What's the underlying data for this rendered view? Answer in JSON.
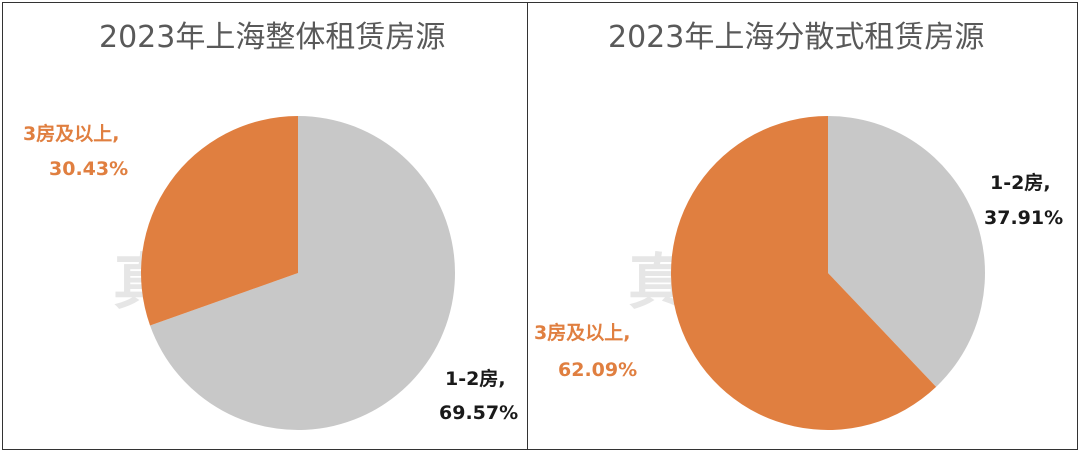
{
  "watermark": "真叫卢俊",
  "colors": {
    "slice_large_orange": "#e07f40",
    "slice_gray": "#c8c8c8",
    "orange_label": "#e07f40",
    "dark_label": "#1a1a1a",
    "title": "#595959"
  },
  "chart_data": [
    {
      "type": "pie",
      "title": "2023年上海整体租赁房源",
      "slices": [
        {
          "label": "1-2房,",
          "value_text": "69.57%",
          "value": 69.57,
          "color": "#c8c8c8",
          "label_color": "#1a1a1a"
        },
        {
          "label": "3房及以上,",
          "value_text": "30.43%",
          "value": 30.43,
          "color": "#e07f40",
          "label_color": "#e07f40"
        }
      ]
    },
    {
      "type": "pie",
      "title": "2023年上海分散式租赁房源",
      "slices": [
        {
          "label": "1-2房,",
          "value_text": "37.91%",
          "value": 37.91,
          "color": "#c8c8c8",
          "label_color": "#1a1a1a"
        },
        {
          "label": "3房及以上,",
          "value_text": "62.09%",
          "value": 62.09,
          "color": "#e07f40",
          "label_color": "#e07f40"
        }
      ]
    }
  ]
}
